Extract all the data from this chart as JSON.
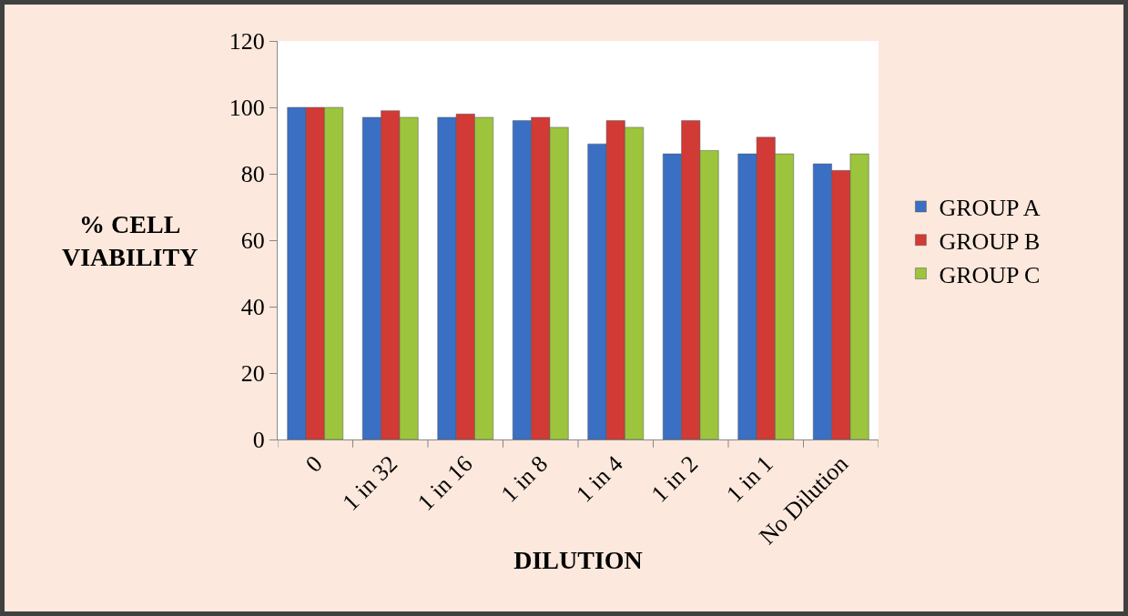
{
  "chart_data": {
    "type": "bar",
    "xlabel": "DILUTION",
    "ylabel": "% CELL VIABILITY",
    "categories": [
      "0",
      "1 in 32",
      "1 in 16",
      "1 in 8",
      "1 in 4",
      "1 in 2",
      "1 in 1",
      "No Dilution"
    ],
    "series": [
      {
        "name": "GROUP A",
        "color": "#3a6fc4",
        "values": [
          100,
          97,
          97,
          96,
          89,
          86,
          86,
          83
        ]
      },
      {
        "name": "GROUP B",
        "color": "#d23a35",
        "values": [
          100,
          99,
          98,
          97,
          96,
          96,
          91,
          81
        ]
      },
      {
        "name": "GROUP C",
        "color": "#9cc43c",
        "values": [
          100,
          97,
          97,
          94,
          94,
          87,
          86,
          86
        ]
      }
    ],
    "ylim": [
      0,
      120
    ],
    "yticks": [
      0,
      20,
      40,
      60,
      80,
      100,
      120
    ],
    "grid": false,
    "legend": "right"
  }
}
